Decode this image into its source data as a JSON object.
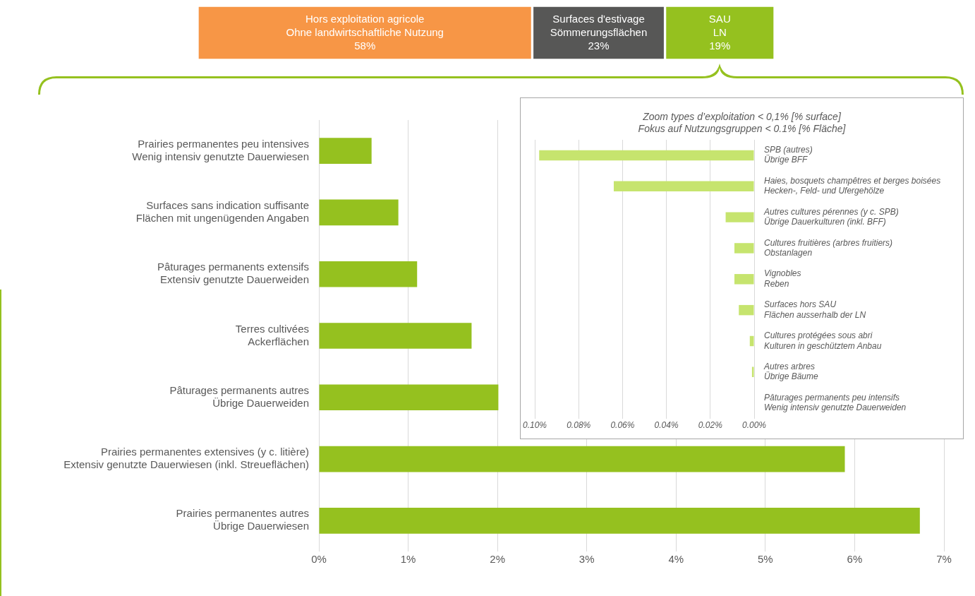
{
  "chart_data": [
    {
      "type": "bar",
      "orientation": "horizontal",
      "stacked": true,
      "categories": [
        null
      ],
      "xlim": [
        0,
        100
      ],
      "tick_labels": false,
      "legend": false,
      "grid": false,
      "series": [
        {
          "name": "Hors exploitation agricole\nOhne landwirtschaftliche Nutzung",
          "color": "#f79646",
          "values": [
            58
          ],
          "value_labels": [
            "58%"
          ]
        },
        {
          "name": "Surfaces d'estivage\nSömmerungsflächen",
          "color": "#575756",
          "values": [
            23
          ],
          "value_labels": [
            "23%"
          ]
        },
        {
          "name": "SAU\nLN",
          "color": "#95c11f",
          "values": [
            19
          ],
          "value_labels": [
            "19%"
          ]
        }
      ]
    },
    {
      "type": "bar",
      "orientation": "horizontal",
      "legend": false,
      "grid": "x",
      "color": "#95c11f",
      "categories": [
        "Prairies permanentes peu intensives\nWenig intensiv genutzte Dauerwiesen",
        "Surfaces sans indication suffisante\nFlächen mit ungenügenden Angaben",
        "Pâturages permanents extensifs\nExtensiv genutzte Dauerweiden",
        "Terres cultivées\nAckerflächen",
        "Pâturages permanents autres\nÜbrige Dauerweiden",
        "Prairies permanentes extensives (y c. litière)\nExtensiv genutzte Dauerwiesen (inkl. Streueflächen)",
        "Prairies permanentes autres\nÜbrige Dauerwiesen"
      ],
      "values": [
        0.59,
        0.89,
        1.1,
        1.71,
        2.01,
        5.89,
        6.73
      ],
      "xlim": [
        0,
        7
      ],
      "xticks": [
        {
          "value": 0,
          "label": "0%"
        },
        {
          "value": 1,
          "label": "1%"
        },
        {
          "value": 2,
          "label": "2%"
        },
        {
          "value": 3,
          "label": "3%"
        },
        {
          "value": 4,
          "label": "4%"
        },
        {
          "value": 5,
          "label": "5%"
        },
        {
          "value": 6,
          "label": "6%"
        },
        {
          "value": 7,
          "label": "7%"
        }
      ]
    },
    {
      "type": "bar",
      "orientation": "horizontal",
      "legend": false,
      "grid": "x",
      "color": "#c6e46e",
      "title": "Zoom types d’exploitation < 0,1% [% surface]\nFokus auf Nutzungsgruppen < 0.1% [% Fläche]",
      "categories": [
        "SPB (autres)\nÜbrige BFF",
        "Haies, bosquets champêtres et berges boisées\nHecken-, Feld- und Ufergehölze",
        "Autres cultures pérennes (y c. SPB)\nÜbrige Dauerkulturen (inkl. BFF)",
        "Cultures fruitières (arbres fruitiers)\nObstanlagen",
        "Vignobles\nReben",
        "Surfaces hors SAU\nFlächen ausserhalb der LN",
        "Cultures protégées sous abri\nKulturen in geschütztem Anbau",
        "Autres arbres\nÜbrige Bäume",
        "Pâturages permanents peu intensifs\nWenig intensiv genutzte Dauerweiden"
      ],
      "values": [
        0.098,
        0.064,
        0.013,
        0.009,
        0.009,
        0.007,
        0.002,
        0.001,
        0
      ],
      "xlim": [
        0.1,
        0
      ],
      "xticks": [
        {
          "value": 0.1,
          "label": "0.10%"
        },
        {
          "value": 0.08,
          "label": "0.08%"
        },
        {
          "value": 0.06,
          "label": "0.06%"
        },
        {
          "value": 0.04,
          "label": "0.04%"
        },
        {
          "value": 0.02,
          "label": "0.02%"
        },
        {
          "value": 0,
          "label": "0.00%"
        }
      ]
    }
  ]
}
